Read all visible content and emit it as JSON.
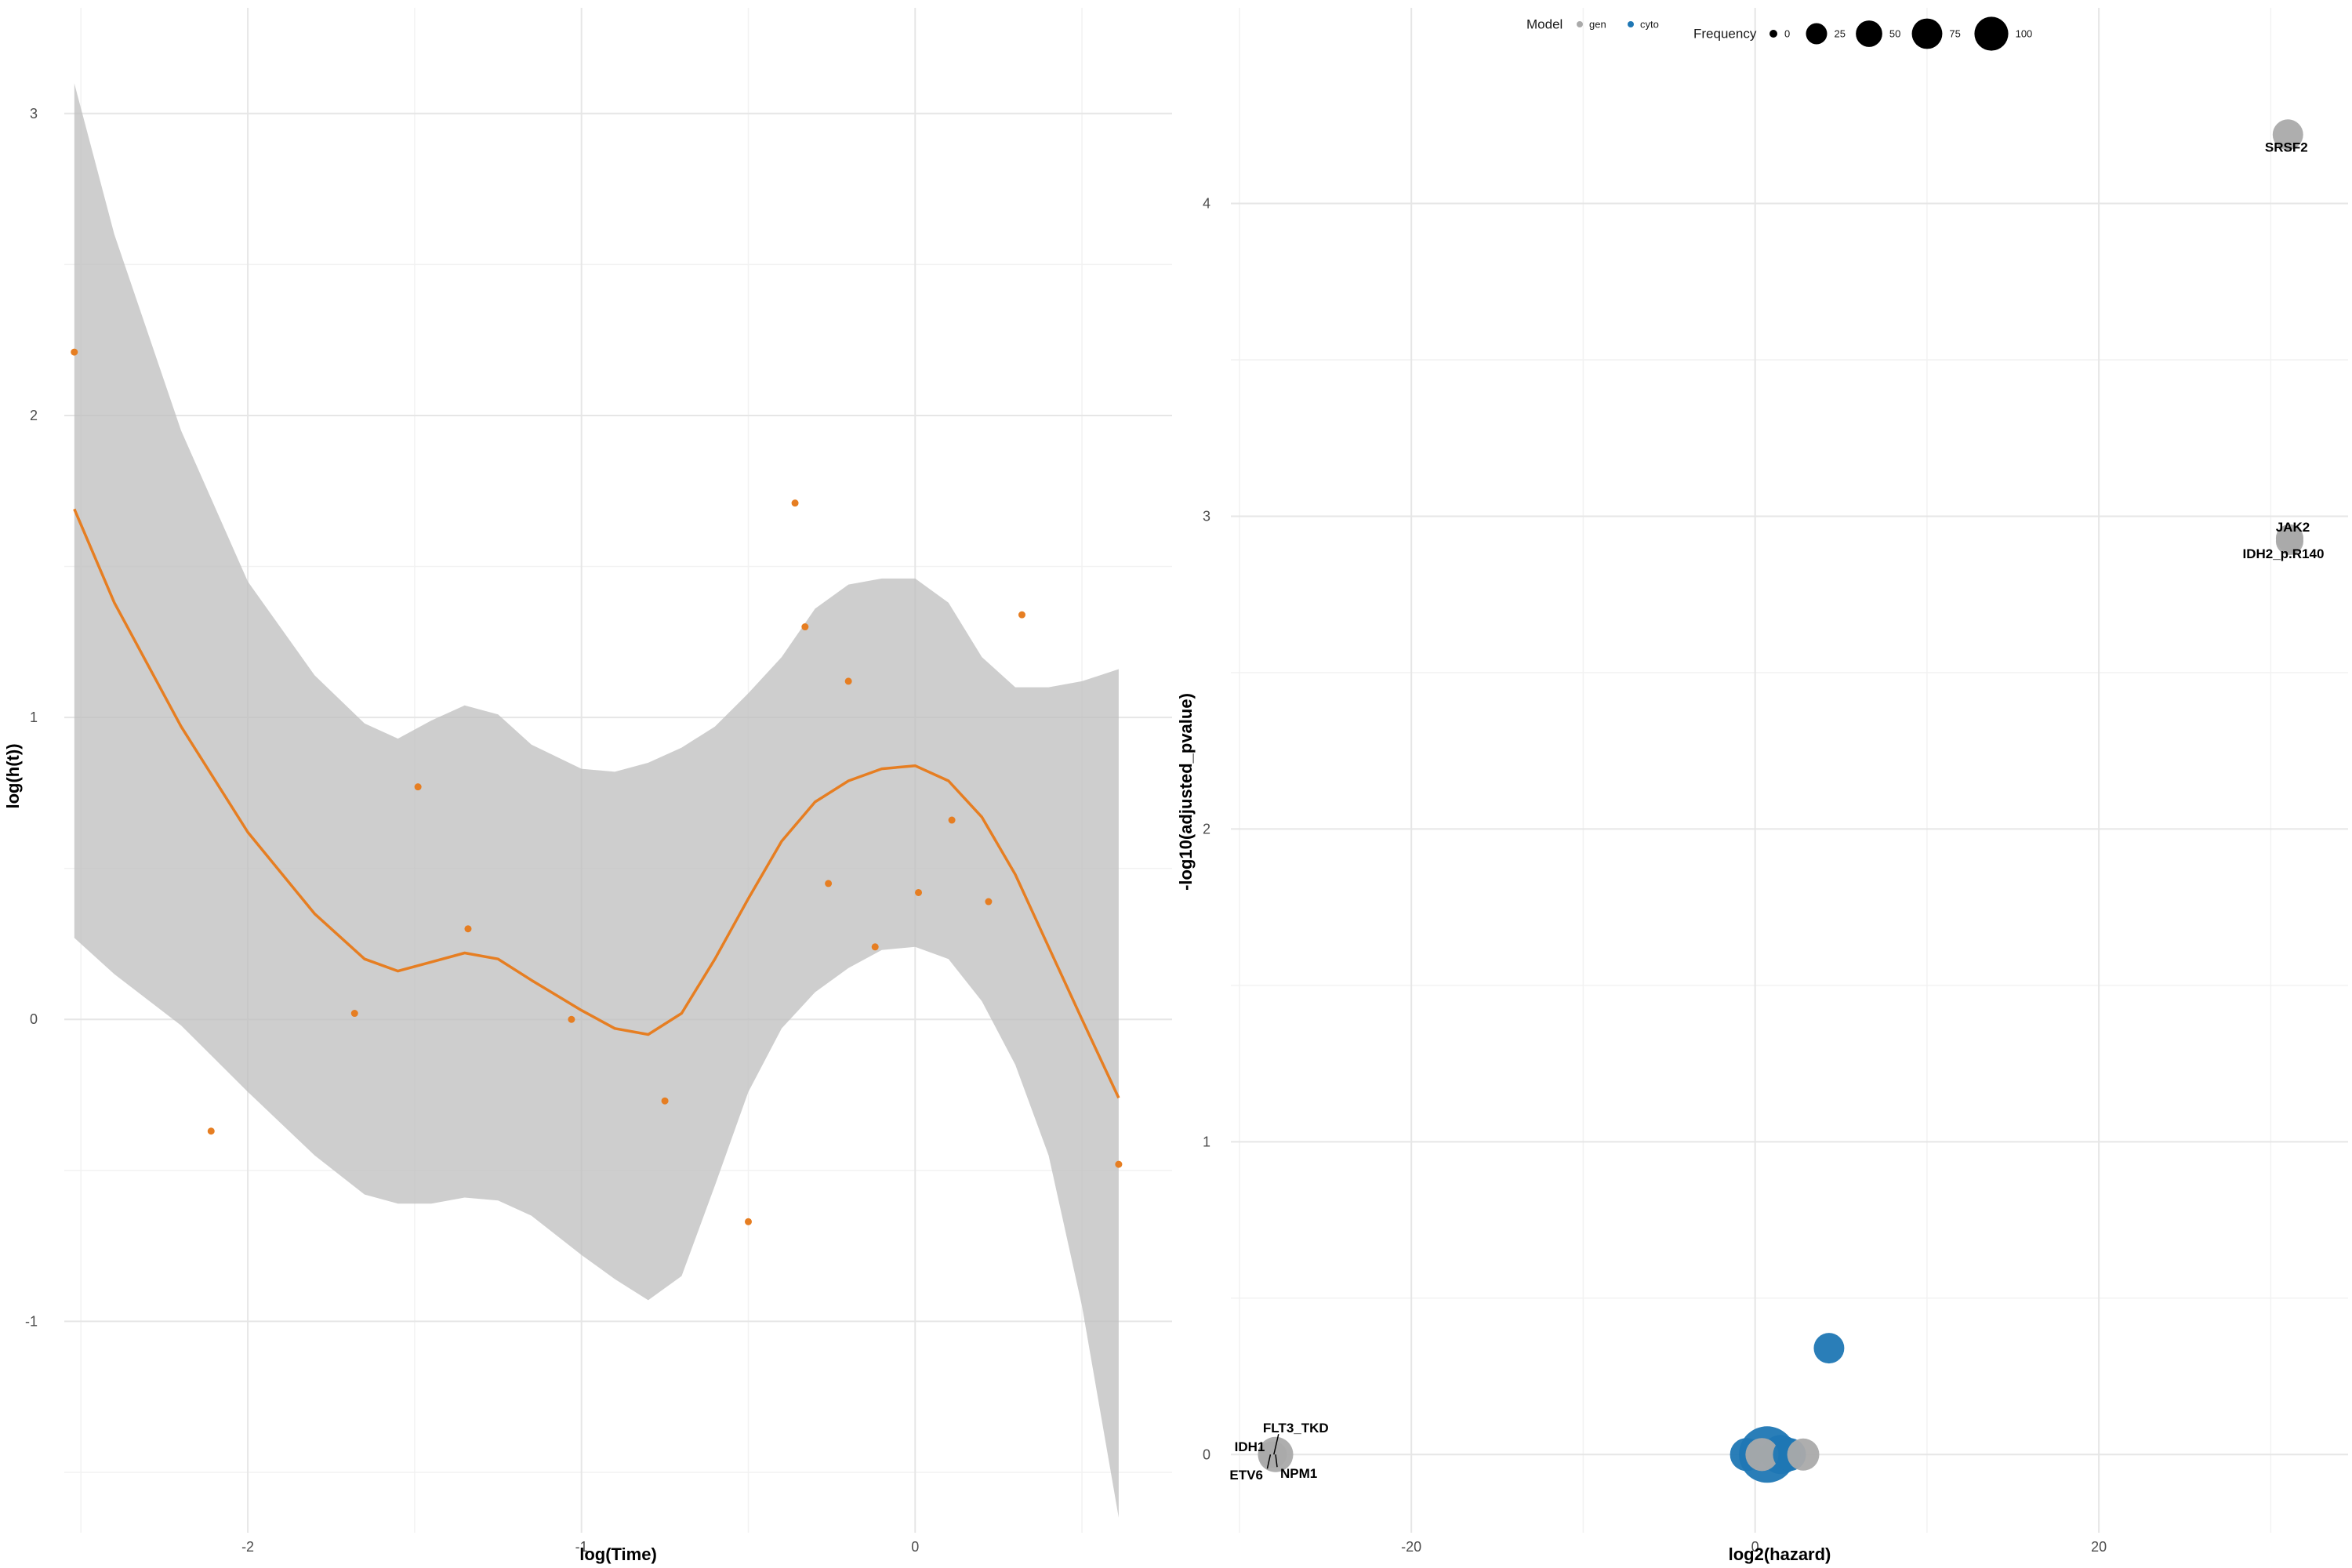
{
  "chart_data": [
    {
      "type": "scatter",
      "title": "",
      "xlabel": "log(Time)",
      "ylabel": "log(h(t))",
      "xlim": [
        -2.55,
        0.77
      ],
      "ylim": [
        -1.7,
        3.35
      ],
      "xticks": [
        -2,
        -1,
        0
      ],
      "xtick_labels": [
        "-2",
        "-1",
        "0"
      ],
      "yticks": [
        -1,
        0,
        1,
        2,
        3
      ],
      "ytick_labels": [
        "-1",
        "0",
        "1",
        "2",
        "3"
      ],
      "grid": true,
      "point_color": "#E67E22",
      "line_color": "#E67E22",
      "band_color": "#BEBEBE",
      "points": {
        "x": [
          -2.52,
          -2.11,
          -1.68,
          -1.49,
          -1.34,
          -1.03,
          -0.75,
          -0.5,
          -0.36,
          -0.33,
          -0.26,
          -0.2,
          -0.12,
          0.01,
          0.11,
          0.22,
          0.32,
          0.61
        ],
        "y": [
          2.21,
          -0.37,
          0.02,
          0.77,
          0.3,
          0.0,
          -0.27,
          -0.67,
          1.71,
          1.3,
          0.45,
          1.12,
          0.24,
          0.42,
          0.66,
          0.39,
          1.34,
          -0.48
        ]
      },
      "smooth": {
        "x": [
          -2.52,
          -2.4,
          -2.2,
          -2.0,
          -1.8,
          -1.65,
          -1.55,
          -1.45,
          -1.35,
          -1.25,
          -1.15,
          -1.0,
          -0.9,
          -0.8,
          -0.7,
          -0.6,
          -0.5,
          -0.4,
          -0.3,
          -0.2,
          -0.1,
          0.0,
          0.1,
          0.2,
          0.3,
          0.4,
          0.5,
          0.61
        ],
        "y": [
          1.69,
          1.38,
          0.97,
          0.62,
          0.35,
          0.2,
          0.16,
          0.19,
          0.22,
          0.2,
          0.13,
          0.03,
          -0.03,
          -0.05,
          0.02,
          0.2,
          0.4,
          0.59,
          0.72,
          0.79,
          0.83,
          0.84,
          0.79,
          0.67,
          0.48,
          0.24,
          0.0,
          -0.26
        ]
      },
      "band_upper": [
        3.1,
        2.6,
        1.95,
        1.45,
        1.14,
        0.98,
        0.93,
        0.99,
        1.04,
        1.01,
        0.91,
        0.83,
        0.82,
        0.85,
        0.9,
        0.97,
        1.08,
        1.2,
        1.36,
        1.44,
        1.46,
        1.46,
        1.38,
        1.2,
        1.1,
        1.1,
        1.12,
        1.16
      ],
      "band_lower": [
        0.27,
        0.15,
        -0.02,
        -0.24,
        -0.45,
        -0.58,
        -0.61,
        -0.61,
        -0.59,
        -0.6,
        -0.65,
        -0.78,
        -0.86,
        -0.93,
        -0.85,
        -0.55,
        -0.24,
        -0.03,
        0.09,
        0.17,
        0.23,
        0.24,
        0.2,
        0.06,
        -0.15,
        -0.45,
        -0.95,
        -1.65
      ]
    },
    {
      "type": "scatter",
      "title": "",
      "xlabel": "log2(hazard)",
      "ylabel": "-log10(adjusted_pvalue)",
      "xlim": [
        -30.5,
        34.5
      ],
      "ylim": [
        -0.25,
        4.45
      ],
      "xticks": [
        -20,
        0,
        20
      ],
      "xtick_labels": [
        "-20",
        "0",
        "20"
      ],
      "yticks": [
        0,
        1,
        2,
        3,
        4
      ],
      "ytick_labels": [
        "0",
        "1",
        "2",
        "3",
        "4"
      ],
      "grid": true,
      "legend_position": "top",
      "legend": {
        "model_title": "Model",
        "model_entries": [
          {
            "label": "gen",
            "color": "#AAAAAA"
          },
          {
            "label": "cyto",
            "color": "#1F77B4"
          }
        ],
        "size_title": "Frequency",
        "size_entries": [
          {
            "label": "0",
            "value": 0
          },
          {
            "label": "25",
            "value": 25
          },
          {
            "label": "50",
            "value": 50
          },
          {
            "label": "75",
            "value": 75
          },
          {
            "label": "100",
            "value": 100
          }
        ]
      },
      "points": [
        {
          "label": "SRSF2",
          "x": 31.0,
          "y": 4.22,
          "model": "gen",
          "frequency": 15
        },
        {
          "label": "JAK2",
          "x": 31.1,
          "y": 2.93,
          "model": "gen",
          "frequency": 10
        },
        {
          "label": "IDH2_p.R140",
          "x": 31.1,
          "y": 2.92,
          "model": "gen",
          "frequency": 10
        },
        {
          "label": "FLT3_TKD",
          "x": -28.0,
          "y": 0.0,
          "model": "gen",
          "frequency": 8
        },
        {
          "label": "IDH1",
          "x": -28.1,
          "y": 0.0,
          "model": "gen",
          "frequency": 8
        },
        {
          "label": "ETV6",
          "x": -28.2,
          "y": 0.0,
          "model": "gen",
          "frequency": 6
        },
        {
          "label": "NPM1",
          "x": -27.9,
          "y": 0.0,
          "model": "gen",
          "frequency": 25
        },
        {
          "label": "",
          "x": 4.3,
          "y": 0.34,
          "model": "cyto",
          "frequency": 15
        },
        {
          "label": "",
          "x": -0.5,
          "y": 0.0,
          "model": "cyto",
          "frequency": 20
        },
        {
          "label": "",
          "x": 0.4,
          "y": 0.0,
          "model": "gen",
          "frequency": 20
        },
        {
          "label": "",
          "x": 0.7,
          "y": 0.0,
          "model": "cyto",
          "frequency": 100
        },
        {
          "label": "",
          "x": 1.5,
          "y": 0.0,
          "model": "cyto",
          "frequency": 35
        },
        {
          "label": "",
          "x": 2.0,
          "y": 0.0,
          "model": "cyto",
          "frequency": 20
        },
        {
          "label": "",
          "x": 2.8,
          "y": 0.0,
          "model": "gen",
          "frequency": 18
        }
      ]
    }
  ]
}
